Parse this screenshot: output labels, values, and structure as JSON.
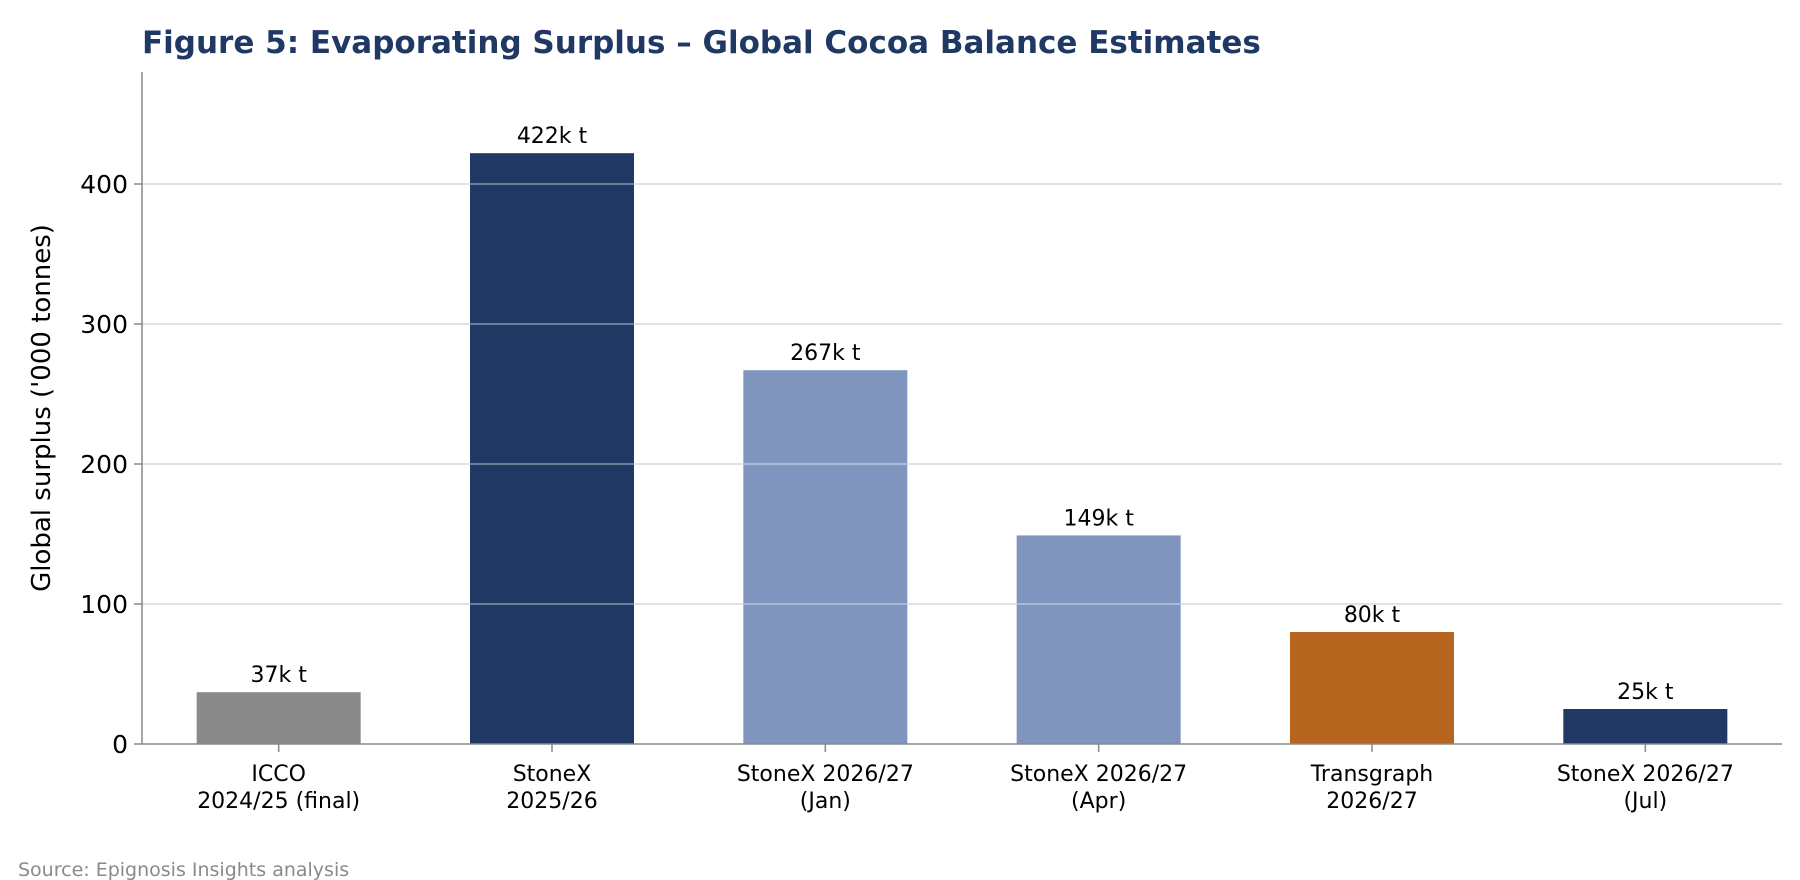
{
  "chart_data": {
    "type": "bar",
    "title": "Figure 5: Evaporating Surplus – Global Cocoa Balance Estimates",
    "ylabel": "Global surplus ('000 tonnes)",
    "xlabel": "",
    "ylim": [
      0,
      480
    ],
    "yticks": [
      0,
      100,
      200,
      300,
      400
    ],
    "grid": true,
    "categories": [
      [
        "ICCO",
        "2024/25 (final)"
      ],
      [
        "StoneX",
        "2025/26"
      ],
      [
        "StoneX 2026/27",
        "(Jan)"
      ],
      [
        "StoneX 2026/27",
        "(Apr)"
      ],
      [
        "Transgraph",
        "2026/27"
      ],
      [
        "StoneX 2026/27",
        "(Jul)"
      ]
    ],
    "values": [
      37,
      422,
      267,
      149,
      80,
      25
    ],
    "data_labels": [
      "37k t",
      "422k t",
      "267k t",
      "149k t",
      "80k t",
      "25k t"
    ],
    "colors": [
      "#8a8a8a",
      "#1f3864",
      "#7f95be",
      "#7f95be",
      "#b5651d",
      "#1f3864"
    ],
    "title_color": "#1f3864",
    "grid_color": "#d0d0d0",
    "axis_color": "#888888"
  },
  "source": "Source: Epignosis Insights analysis"
}
